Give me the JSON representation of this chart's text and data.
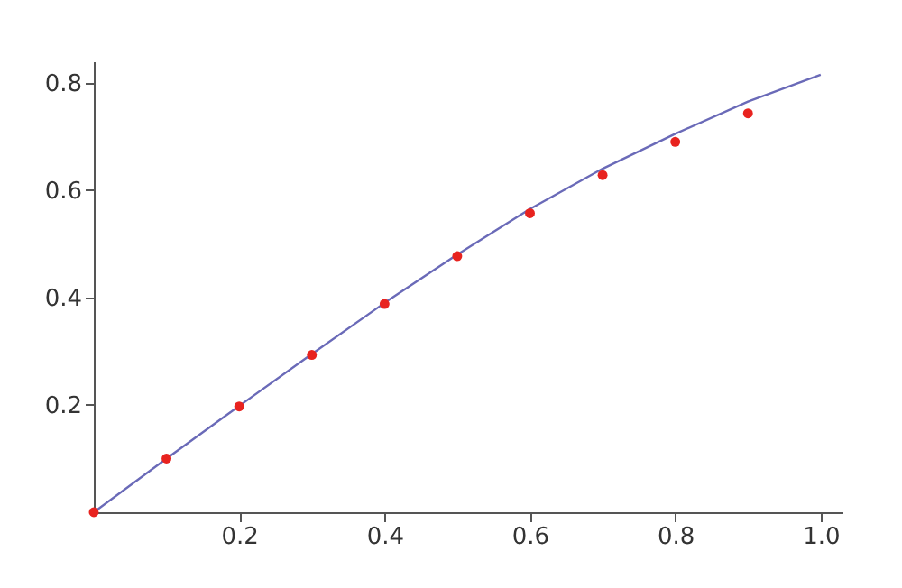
{
  "chart_data": {
    "type": "scatter",
    "xlim": [
      0,
      1.03
    ],
    "ylim": [
      0,
      0.84
    ],
    "xticks": [
      0.2,
      0.4,
      0.6,
      0.8,
      {
        "value": 1,
        "label": "1.0"
      }
    ],
    "yticks": [
      0.2,
      0.4,
      0.6,
      0.8
    ],
    "series": [
      {
        "type": "line",
        "color": "#6a6ab8",
        "x": [
          0,
          0.1,
          0.2,
          0.3,
          0.4,
          0.5,
          0.6,
          0.7,
          0.8,
          0.9,
          1.0
        ],
        "values": [
          0,
          0.1,
          0.198,
          0.295,
          0.39,
          0.48,
          0.565,
          0.64,
          0.705,
          0.765,
          0.815
        ]
      },
      {
        "color": "#e8231f",
        "marker": "circle",
        "x": [
          0,
          0.1,
          0.2,
          0.3,
          0.4,
          0.5,
          0.6,
          0.7,
          0.8,
          0.9
        ],
        "values": [
          0,
          0.1,
          0.197,
          0.293,
          0.388,
          0.477,
          0.557,
          0.628,
          0.69,
          0.743
        ]
      }
    ]
  }
}
